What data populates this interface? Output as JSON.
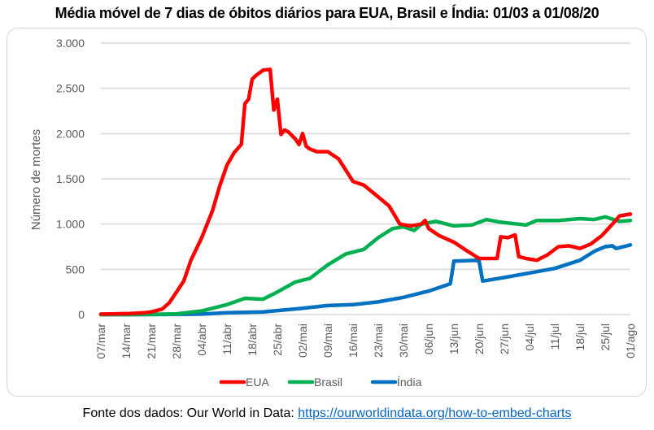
{
  "title": "Média móvel de 7 dias de óbitos diários para EUA, Brasil e Índia: 01/03 a 01/08/20",
  "source": {
    "prefix": "Fonte dos dados: Our World in Data: ",
    "link_text": "https://ourworldindata.org/how-to-embed-charts"
  },
  "chart_data": {
    "type": "line",
    "title": "Média móvel de 7 dias de óbitos diários para EUA, Brasil e Índia: 01/03 a 01/08/20",
    "xlabel": "",
    "ylabel": "Número de mortes",
    "x_unit": "days since 07/mar",
    "xlim": [
      0,
      147
    ],
    "ylim": [
      0,
      3000
    ],
    "yticks": [
      0,
      500,
      1000,
      1500,
      2000,
      2500,
      3000
    ],
    "ytick_labels": [
      "0",
      "500",
      "1.000",
      "1.500",
      "2.000",
      "2.500",
      "3.000"
    ],
    "xticks": [
      0,
      7,
      14,
      21,
      28,
      35,
      42,
      49,
      56,
      63,
      70,
      77,
      84,
      91,
      98,
      105,
      112,
      119,
      126,
      133,
      140,
      147
    ],
    "xtick_labels": [
      "07/mar",
      "14/mar",
      "21/mar",
      "28/mar",
      "04/abr",
      "11/abr",
      "18/abr",
      "25/abr",
      "02/mai",
      "09/mai",
      "16/mai",
      "23/mai",
      "30/mai",
      "06/jun",
      "13/jun",
      "20/jun",
      "27/jun",
      "04/jul",
      "11/jul",
      "18/jul",
      "25/jul",
      "01/ago"
    ],
    "grid": "horizontal",
    "legend_position": "bottom",
    "series": [
      {
        "name": "EUA",
        "color": "#ff0000",
        "x": [
          0,
          4,
          8,
          12,
          14,
          17,
          19,
          21,
          23,
          25,
          28,
          31,
          33,
          35,
          37,
          39,
          40,
          41,
          42,
          43,
          45,
          47,
          48,
          49,
          50,
          51,
          52,
          54,
          55,
          56,
          57,
          58,
          60,
          63,
          66,
          70,
          73,
          77,
          80,
          83,
          86,
          89,
          90,
          91,
          94,
          98,
          101,
          105,
          110,
          111,
          113,
          115,
          116,
          118,
          121,
          124,
          127,
          130,
          133,
          136,
          139,
          142,
          144,
          147
        ],
        "values": [
          5,
          8,
          12,
          20,
          30,
          60,
          130,
          250,
          370,
          600,
          850,
          1150,
          1420,
          1650,
          1790,
          1880,
          2330,
          2380,
          2600,
          2640,
          2700,
          2710,
          2260,
          2380,
          1990,
          2040,
          2020,
          1940,
          1880,
          2000,
          1860,
          1830,
          1800,
          1800,
          1720,
          1470,
          1430,
          1300,
          1200,
          1000,
          980,
          1000,
          1040,
          950,
          870,
          800,
          720,
          620,
          620,
          860,
          850,
          880,
          640,
          620,
          600,
          660,
          750,
          760,
          730,
          780,
          870,
          1000,
          1090,
          1110
        ]
      },
      {
        "name": "Brasil",
        "color": "#00b050",
        "x": [
          0,
          7,
          14,
          21,
          28,
          35,
          40,
          45,
          49,
          54,
          58,
          63,
          68,
          73,
          77,
          81,
          84,
          87,
          89,
          93,
          98,
          103,
          107,
          111,
          118,
          121,
          127,
          133,
          137,
          140,
          144,
          147
        ],
        "values": [
          0,
          0,
          2,
          8,
          40,
          110,
          180,
          170,
          250,
          360,
          400,
          550,
          670,
          720,
          850,
          950,
          970,
          930,
          1000,
          1030,
          980,
          990,
          1050,
          1020,
          990,
          1040,
          1040,
          1060,
          1050,
          1080,
          1030,
          1040
        ]
      },
      {
        "name": "Índia",
        "color": "#0070c0",
        "x": [
          0,
          14,
          28,
          35,
          45,
          56,
          63,
          70,
          77,
          84,
          91,
          97,
          98,
          104,
          105,
          106,
          112,
          119,
          126,
          133,
          137,
          140,
          142,
          143,
          147
        ],
        "values": [
          0,
          0,
          5,
          20,
          30,
          70,
          100,
          110,
          140,
          190,
          260,
          340,
          590,
          600,
          590,
          370,
          410,
          460,
          510,
          600,
          700,
          750,
          760,
          730,
          770
        ]
      }
    ]
  }
}
